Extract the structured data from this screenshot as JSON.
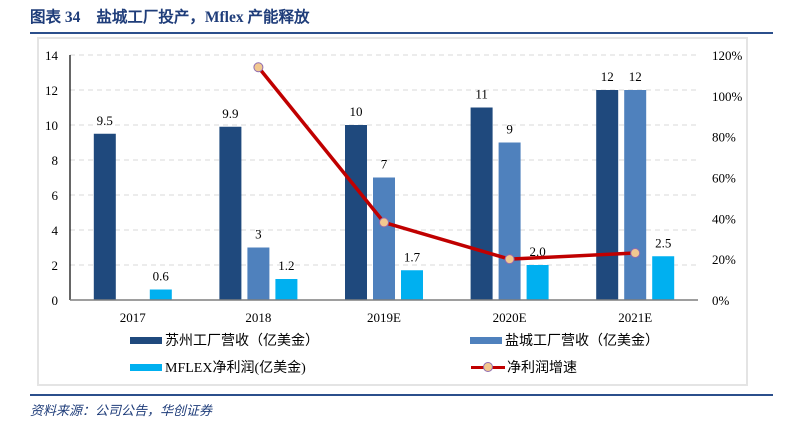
{
  "title": {
    "label": "图表 34",
    "text": "盐城工厂投产，Mflex 产能释放"
  },
  "source": "资料来源：公司公告，华创证券",
  "chart_data": {
    "type": "bar",
    "title": "盐城工厂投产，Mflex 产能释放",
    "categories": [
      "2017",
      "2018",
      "2019E",
      "2020E",
      "2021E"
    ],
    "series": [
      {
        "name": "苏州工厂营收（亿美金）",
        "type": "bar",
        "axis": "left",
        "color": "#1F497D",
        "values": [
          9.5,
          9.9,
          10,
          11,
          12
        ],
        "labels": [
          "9.5",
          "9.9",
          "10",
          "11",
          "12"
        ]
      },
      {
        "name": "盐城工厂营收（亿美金）",
        "type": "bar",
        "axis": "left",
        "color": "#4F81BD",
        "values": [
          null,
          3,
          7,
          9,
          12
        ],
        "labels": [
          null,
          "3",
          "7",
          "9",
          "12"
        ]
      },
      {
        "name": "MFLEX净利润(亿美金)",
        "type": "bar",
        "axis": "left",
        "color": "#00B0F0",
        "values": [
          0.6,
          1.2,
          1.7,
          2.0,
          2.5
        ],
        "labels": [
          "0.6",
          "1.2",
          "1.7",
          "2.0",
          "2.5"
        ]
      },
      {
        "name": "净利润增速",
        "type": "line",
        "axis": "right",
        "unit": "%",
        "color": "#C00000",
        "marker_fill": "#F2C890",
        "marker_stroke": "#8E6BB0",
        "values": [
          null,
          114,
          38,
          20,
          23
        ]
      }
    ],
    "y_left": {
      "min": 0,
      "max": 14,
      "ticks": [
        0,
        2,
        4,
        6,
        8,
        10,
        12,
        14
      ],
      "tick_labels": [
        "0",
        "2",
        "4",
        "6",
        "8",
        "10",
        "12",
        "14"
      ]
    },
    "y_right": {
      "min": 0,
      "max": 120,
      "ticks": [
        0,
        20,
        40,
        60,
        80,
        100,
        120
      ],
      "tick_labels": [
        "0%",
        "20%",
        "40%",
        "60%",
        "80%",
        "100%",
        "120%"
      ]
    },
    "xlabel": "",
    "ylabel": "",
    "grid": true,
    "legend": "bottom"
  }
}
